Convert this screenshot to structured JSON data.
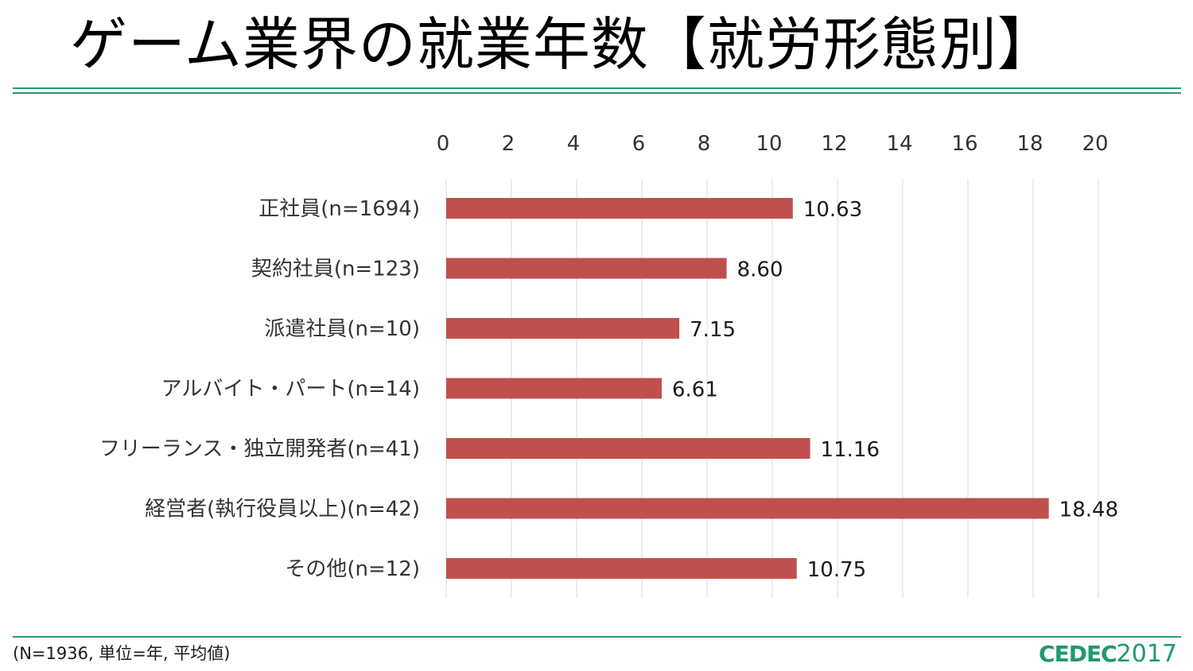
{
  "title": "ゲーム業界の就業年数【就労形態別】",
  "footnote": "(N=1936, 単位=年, 平均値)",
  "logo": {
    "brand": "CEDEC",
    "year": "2017",
    "color": "#1f9a6a"
  },
  "colors": {
    "bar": "#c0504d",
    "grid": "#d9d9d9",
    "rule": "#2a9a6a"
  },
  "chart_data": {
    "type": "bar",
    "orientation": "horizontal",
    "title": "",
    "xlabel": "",
    "ylabel": "",
    "xlim": [
      0,
      20
    ],
    "ticks": [
      0,
      2,
      4,
      6,
      8,
      10,
      12,
      14,
      16,
      18,
      20
    ],
    "tick_labels": [
      "0",
      "2",
      "4",
      "6",
      "8",
      "10",
      "12",
      "14",
      "16",
      "18",
      "20"
    ],
    "axis_position": "top",
    "grid": true,
    "legend": "none",
    "categories": [
      "正社員(n=1694)",
      "契約社員(n=123)",
      "派遣社員(n=10)",
      "アルバイト・パート(n=14)",
      "フリーランス・独立開発者(n=41)",
      "経営者(執行役員以上)(n=42)",
      "その他(n=12)"
    ],
    "values": [
      10.63,
      8.6,
      7.15,
      6.61,
      11.16,
      18.48,
      10.75
    ],
    "value_labels": [
      "10.63",
      "8.60",
      "7.15",
      "6.61",
      "11.16",
      "18.48",
      "10.75"
    ]
  }
}
